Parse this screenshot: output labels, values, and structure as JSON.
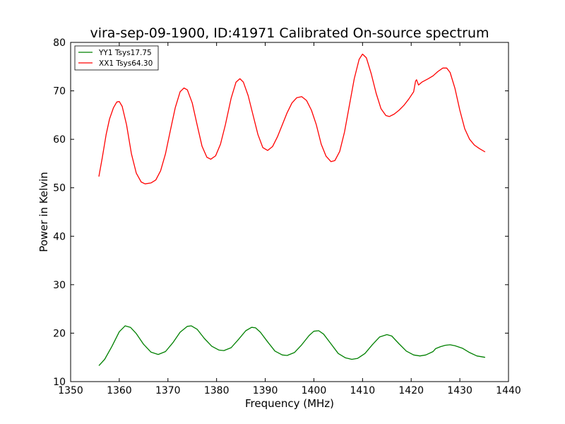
{
  "chart_data": {
    "type": "line",
    "title": "vira-sep-09-1900, ID:41971 Calibrated On-source spectrum",
    "xlabel": "Frequency (MHz)",
    "ylabel": "Power in Kelvin",
    "xlim": [
      1350,
      1440
    ],
    "ylim": [
      10,
      80
    ],
    "xticks": [
      1350,
      1360,
      1370,
      1380,
      1390,
      1400,
      1410,
      1420,
      1430,
      1440
    ],
    "yticks": [
      10,
      20,
      30,
      40,
      50,
      60,
      70,
      80
    ],
    "grid": false,
    "legend_position": "top-left",
    "series": [
      {
        "name": "YY1 Tsys17.75",
        "color": "#008000",
        "points": [
          [
            1355.8,
            13.3
          ],
          [
            1357.0,
            14.6
          ],
          [
            1358.5,
            17.3
          ],
          [
            1360.0,
            20.3
          ],
          [
            1361.2,
            21.5
          ],
          [
            1362.3,
            21.2
          ],
          [
            1363.5,
            19.9
          ],
          [
            1365.0,
            17.7
          ],
          [
            1366.5,
            16.1
          ],
          [
            1368.0,
            15.6
          ],
          [
            1369.5,
            16.2
          ],
          [
            1371.0,
            18.0
          ],
          [
            1372.5,
            20.2
          ],
          [
            1374.0,
            21.4
          ],
          [
            1374.8,
            21.5
          ],
          [
            1376.0,
            20.8
          ],
          [
            1377.5,
            18.9
          ],
          [
            1379.0,
            17.3
          ],
          [
            1380.5,
            16.5
          ],
          [
            1381.5,
            16.4
          ],
          [
            1383.0,
            17.0
          ],
          [
            1384.5,
            18.7
          ],
          [
            1386.0,
            20.5
          ],
          [
            1387.2,
            21.2
          ],
          [
            1388.0,
            21.1
          ],
          [
            1389.0,
            20.2
          ],
          [
            1390.5,
            18.2
          ],
          [
            1392.0,
            16.3
          ],
          [
            1393.5,
            15.5
          ],
          [
            1394.5,
            15.4
          ],
          [
            1396.0,
            16.0
          ],
          [
            1397.5,
            17.6
          ],
          [
            1399.0,
            19.5
          ],
          [
            1400.0,
            20.4
          ],
          [
            1401.0,
            20.5
          ],
          [
            1402.0,
            19.8
          ],
          [
            1403.5,
            17.8
          ],
          [
            1405.0,
            15.8
          ],
          [
            1406.5,
            14.9
          ],
          [
            1407.8,
            14.6
          ],
          [
            1409.0,
            14.8
          ],
          [
            1410.5,
            15.8
          ],
          [
            1412.0,
            17.6
          ],
          [
            1413.5,
            19.2
          ],
          [
            1415.0,
            19.7
          ],
          [
            1416.0,
            19.4
          ],
          [
            1417.5,
            17.8
          ],
          [
            1419.0,
            16.3
          ],
          [
            1420.5,
            15.5
          ],
          [
            1421.8,
            15.3
          ],
          [
            1423.0,
            15.5
          ],
          [
            1424.5,
            16.2
          ],
          [
            1425.0,
            16.8
          ],
          [
            1426.0,
            17.2
          ],
          [
            1427.0,
            17.5
          ],
          [
            1428.0,
            17.6
          ],
          [
            1429.0,
            17.4
          ],
          [
            1430.5,
            16.9
          ],
          [
            1432.0,
            16.0
          ],
          [
            1433.5,
            15.3
          ],
          [
            1435.2,
            15.0
          ]
        ]
      },
      {
        "name": "XX1 Tsys64.30",
        "color": "#ff0000",
        "points": [
          [
            1355.8,
            52.3
          ],
          [
            1356.5,
            56.2
          ],
          [
            1357.3,
            61.0
          ],
          [
            1358.0,
            64.2
          ],
          [
            1358.8,
            66.5
          ],
          [
            1359.5,
            67.7
          ],
          [
            1360.0,
            67.8
          ],
          [
            1360.6,
            66.8
          ],
          [
            1361.5,
            63.0
          ],
          [
            1362.5,
            57.0
          ],
          [
            1363.5,
            53.0
          ],
          [
            1364.5,
            51.2
          ],
          [
            1365.3,
            50.8
          ],
          [
            1366.5,
            51.0
          ],
          [
            1367.5,
            51.6
          ],
          [
            1368.5,
            53.5
          ],
          [
            1369.5,
            57.0
          ],
          [
            1370.5,
            61.8
          ],
          [
            1371.5,
            66.5
          ],
          [
            1372.5,
            69.8
          ],
          [
            1373.3,
            70.6
          ],
          [
            1374.0,
            70.2
          ],
          [
            1375.0,
            67.5
          ],
          [
            1376.0,
            63.0
          ],
          [
            1377.0,
            58.6
          ],
          [
            1378.0,
            56.3
          ],
          [
            1378.8,
            55.9
          ],
          [
            1379.8,
            56.6
          ],
          [
            1380.8,
            59.0
          ],
          [
            1381.8,
            63.0
          ],
          [
            1383.0,
            68.5
          ],
          [
            1384.0,
            71.8
          ],
          [
            1384.8,
            72.5
          ],
          [
            1385.5,
            71.8
          ],
          [
            1386.5,
            69.0
          ],
          [
            1387.5,
            65.0
          ],
          [
            1388.5,
            61.0
          ],
          [
            1389.5,
            58.3
          ],
          [
            1390.5,
            57.7
          ],
          [
            1391.5,
            58.5
          ],
          [
            1392.5,
            60.5
          ],
          [
            1393.5,
            63.0
          ],
          [
            1394.5,
            65.5
          ],
          [
            1395.5,
            67.5
          ],
          [
            1396.5,
            68.6
          ],
          [
            1397.5,
            68.8
          ],
          [
            1398.5,
            68.0
          ],
          [
            1399.5,
            66.0
          ],
          [
            1400.5,
            63.0
          ],
          [
            1401.5,
            59.0
          ],
          [
            1402.5,
            56.5
          ],
          [
            1403.5,
            55.4
          ],
          [
            1404.3,
            55.6
          ],
          [
            1405.3,
            57.5
          ],
          [
            1406.3,
            61.5
          ],
          [
            1407.3,
            67.0
          ],
          [
            1408.3,
            72.5
          ],
          [
            1409.3,
            76.5
          ],
          [
            1410.0,
            77.6
          ],
          [
            1410.8,
            76.8
          ],
          [
            1411.8,
            73.5
          ],
          [
            1412.8,
            69.5
          ],
          [
            1413.8,
            66.3
          ],
          [
            1414.8,
            64.9
          ],
          [
            1415.5,
            64.7
          ],
          [
            1416.5,
            65.2
          ],
          [
            1417.5,
            66.0
          ],
          [
            1418.5,
            67.0
          ],
          [
            1419.5,
            68.3
          ],
          [
            1420.5,
            69.8
          ],
          [
            1420.9,
            72.0
          ],
          [
            1421.1,
            72.3
          ],
          [
            1421.5,
            71.2
          ],
          [
            1422.2,
            71.8
          ],
          [
            1423.5,
            72.5
          ],
          [
            1424.5,
            73.1
          ],
          [
            1425.5,
            74.0
          ],
          [
            1426.5,
            74.7
          ],
          [
            1427.3,
            74.7
          ],
          [
            1428.0,
            73.8
          ],
          [
            1429.0,
            70.5
          ],
          [
            1430.0,
            66.0
          ],
          [
            1431.0,
            62.2
          ],
          [
            1432.0,
            60.0
          ],
          [
            1433.0,
            58.8
          ],
          [
            1434.0,
            58.1
          ],
          [
            1435.2,
            57.4
          ]
        ]
      }
    ]
  }
}
